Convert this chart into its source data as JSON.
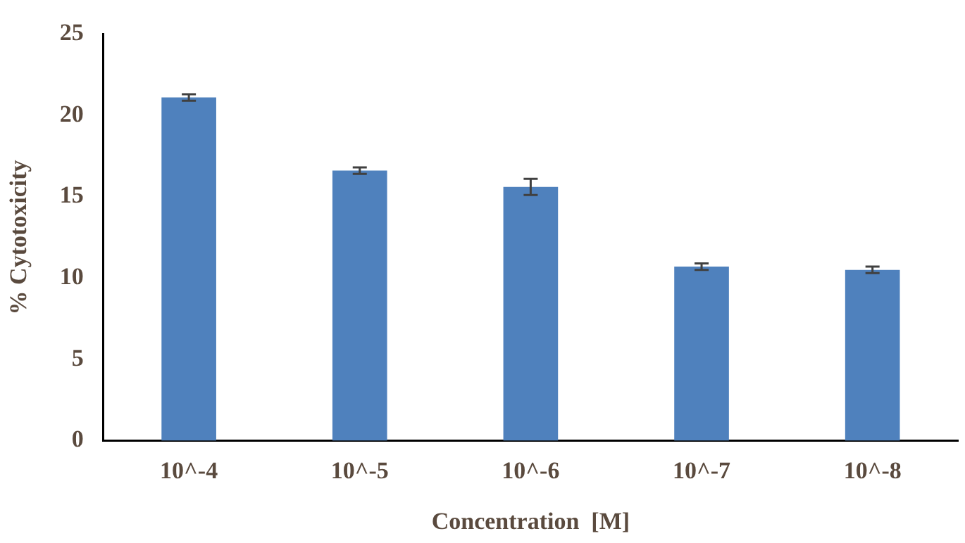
{
  "chart_data": {
    "type": "bar",
    "xlabel": "Concentration  [M]",
    "ylabel": "% Cytotoxicity",
    "categories": [
      "10^-4",
      "10^-5",
      "10^-6",
      "10^-7",
      "10^-8"
    ],
    "values": [
      21.1,
      16.6,
      15.6,
      10.7,
      10.5
    ],
    "errors": [
      0.2,
      0.2,
      0.5,
      0.2,
      0.2
    ],
    "color": "#4f81bd",
    "ylim": [
      0,
      25
    ],
    "yticks": [
      0,
      5,
      10,
      15,
      20,
      25
    ],
    "grid": false,
    "legend": false
  }
}
